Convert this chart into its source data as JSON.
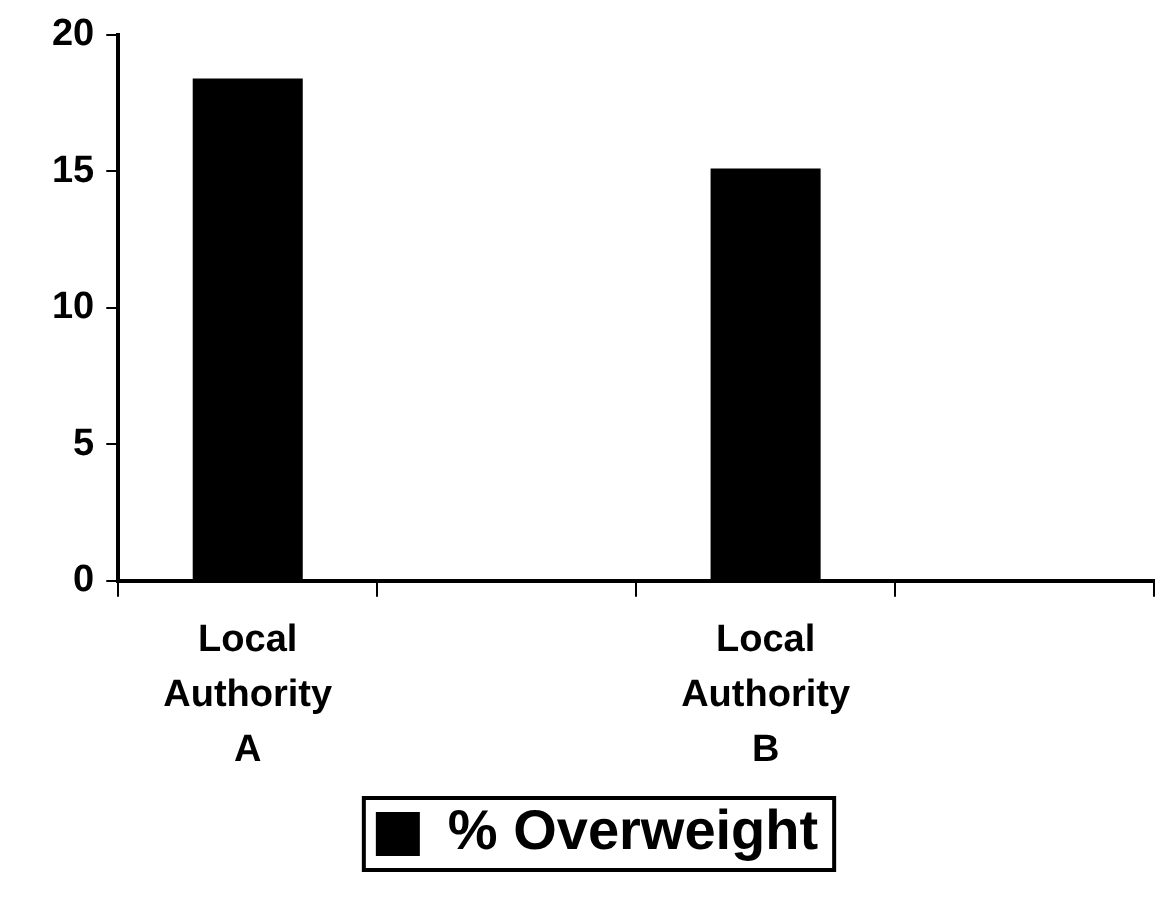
{
  "chart_data": {
    "type": "bar",
    "categories": [
      "Local Authority A",
      null,
      "Local Authority B",
      null
    ],
    "series": [
      {
        "name": "% Overweight",
        "color": "#000000",
        "values": [
          18.4,
          null,
          15.1,
          null
        ]
      }
    ],
    "ylim": [
      0,
      20
    ],
    "yticks": [
      0,
      5,
      10,
      15,
      20
    ],
    "grid": false,
    "legend": "bottom"
  }
}
